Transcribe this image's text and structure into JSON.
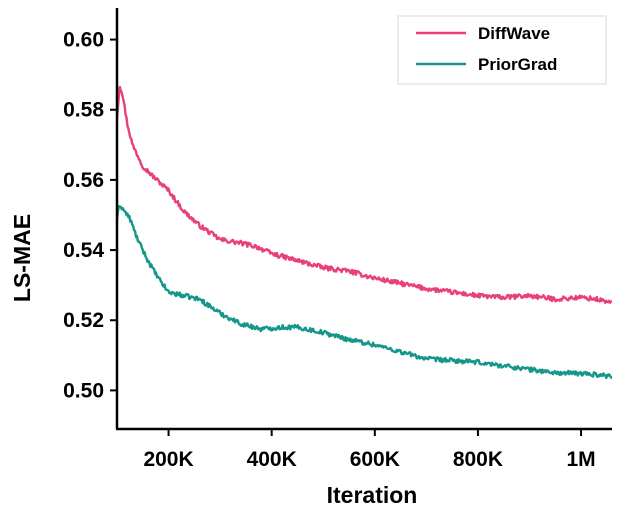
{
  "chart_data": {
    "type": "line",
    "title": "",
    "xlabel": "Iteration",
    "ylabel": "LS-MAE",
    "xlim": [
      100000,
      1060000
    ],
    "ylim": [
      0.489,
      0.609
    ],
    "xticks": [
      {
        "value": 200000,
        "label": "200K"
      },
      {
        "value": 400000,
        "label": "400K"
      },
      {
        "value": 600000,
        "label": "600K"
      },
      {
        "value": 800000,
        "label": "800K"
      },
      {
        "value": 1000000,
        "label": "1M"
      }
    ],
    "yticks": [
      {
        "value": 0.5,
        "label": "0.50"
      },
      {
        "value": 0.52,
        "label": "0.52"
      },
      {
        "value": 0.54,
        "label": "0.54"
      },
      {
        "value": 0.56,
        "label": "0.56"
      },
      {
        "value": 0.58,
        "label": "0.58"
      },
      {
        "value": 0.6,
        "label": "0.60"
      }
    ],
    "grid": false,
    "legend_position": "top-right",
    "series": [
      {
        "name": "DiffWave",
        "color": "#e8407a",
        "x": [
          100000,
          105000,
          110000,
          120000,
          130000,
          150000,
          170000,
          200000,
          230000,
          260000,
          300000,
          340000,
          370000,
          400000,
          450000,
          500000,
          550000,
          600000,
          650000,
          700000,
          750000,
          800000,
          850000,
          900000,
          950000,
          1000000,
          1030000,
          1060000
        ],
        "values": [
          0.578,
          0.587,
          0.585,
          0.576,
          0.57,
          0.564,
          0.561,
          0.557,
          0.551,
          0.547,
          0.543,
          0.542,
          0.541,
          0.539,
          0.537,
          0.535,
          0.534,
          0.532,
          0.5305,
          0.529,
          0.528,
          0.527,
          0.5265,
          0.527,
          0.526,
          0.5265,
          0.526,
          0.525
        ]
      },
      {
        "name": "PriorGrad",
        "color": "#14968a",
        "x": [
          100000,
          105000,
          110000,
          125000,
          140000,
          160000,
          180000,
          200000,
          230000,
          260000,
          300000,
          340000,
          380000,
          420000,
          450000,
          500000,
          550000,
          600000,
          650000,
          700000,
          750000,
          800000,
          850000,
          900000,
          950000,
          1000000,
          1030000,
          1060000
        ],
        "values": [
          0.549,
          0.553,
          0.552,
          0.549,
          0.543,
          0.537,
          0.532,
          0.528,
          0.527,
          0.526,
          0.522,
          0.519,
          0.5175,
          0.518,
          0.518,
          0.5165,
          0.5145,
          0.513,
          0.511,
          0.509,
          0.5085,
          0.508,
          0.507,
          0.506,
          0.505,
          0.5048,
          0.5045,
          0.504
        ]
      }
    ]
  }
}
